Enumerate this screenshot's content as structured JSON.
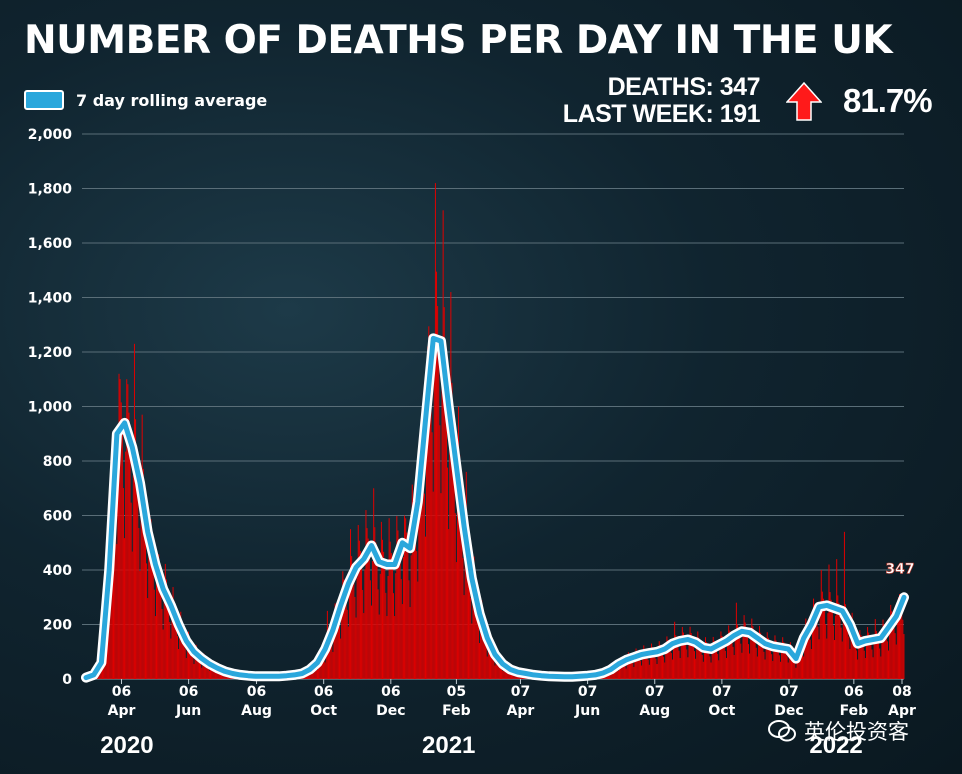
{
  "title": "NUMBER OF DEATHS PER DAY IN THE UK",
  "legend": {
    "label": "7 day rolling average"
  },
  "stats": {
    "deaths": "DEATHS: 347",
    "last_week": "LAST WEEK: 191",
    "change": "81.7%",
    "arrow_color": "#ff1a1a"
  },
  "watermark": {
    "text": "英伦投资客"
  },
  "colors": {
    "bar": "#e00000",
    "line": "#2aa7dc",
    "line_outline": "#ffffff",
    "grid": "#5a6e78"
  },
  "chart_data": {
    "type": "bar",
    "title": "NUMBER OF DEATHS PER DAY IN THE UK",
    "ylim": [
      0,
      2000
    ],
    "ytick_labels": [
      "0",
      "200",
      "400",
      "600",
      "800",
      "1,000",
      "1,200",
      "1,400",
      "1,600",
      "1,800",
      "2,000"
    ],
    "xlim_weeks": [
      0,
      106
    ],
    "xtick_labels": [
      {
        "day": "06",
        "month": "Apr",
        "week": 4.6
      },
      {
        "day": "06",
        "month": "Jun",
        "week": 13.3
      },
      {
        "day": "06",
        "month": "Aug",
        "week": 22.1
      },
      {
        "day": "06",
        "month": "Oct",
        "week": 30.8
      },
      {
        "day": "06",
        "month": "Dec",
        "week": 39.5
      },
      {
        "day": "05",
        "month": "Feb",
        "week": 48.0
      },
      {
        "day": "07",
        "month": "Apr",
        "week": 56.3
      },
      {
        "day": "07",
        "month": "Jun",
        "week": 65.0
      },
      {
        "day": "07",
        "month": "Aug",
        "week": 73.7
      },
      {
        "day": "07",
        "month": "Oct",
        "week": 82.4
      },
      {
        "day": "07",
        "month": "Dec",
        "week": 91.1
      },
      {
        "day": "06",
        "month": "Feb",
        "week": 99.5
      },
      {
        "day": "08",
        "month": "Apr",
        "week": 107.6
      }
    ],
    "year_labels": [
      {
        "label": "2020",
        "week": 5.3
      },
      {
        "label": "2021",
        "week": 47.0
      },
      {
        "label": "2022",
        "week": 97.2
      }
    ],
    "rolling_average": {
      "name": "7 day rolling average",
      "points": [
        [
          0,
          5
        ],
        [
          1,
          15
        ],
        [
          2,
          60
        ],
        [
          3,
          400
        ],
        [
          4,
          900
        ],
        [
          5,
          940
        ],
        [
          6,
          850
        ],
        [
          7,
          720
        ],
        [
          8,
          540
        ],
        [
          9,
          420
        ],
        [
          10,
          330
        ],
        [
          11,
          270
        ],
        [
          12,
          200
        ],
        [
          13,
          140
        ],
        [
          14,
          100
        ],
        [
          15,
          75
        ],
        [
          16,
          55
        ],
        [
          17,
          40
        ],
        [
          18,
          28
        ],
        [
          19,
          20
        ],
        [
          20,
          15
        ],
        [
          21,
          12
        ],
        [
          22,
          10
        ],
        [
          23,
          10
        ],
        [
          24,
          10
        ],
        [
          25,
          10
        ],
        [
          26,
          12
        ],
        [
          27,
          15
        ],
        [
          28,
          20
        ],
        [
          29,
          35
        ],
        [
          30,
          60
        ],
        [
          31,
          110
        ],
        [
          32,
          180
        ],
        [
          33,
          270
        ],
        [
          34,
          350
        ],
        [
          35,
          410
        ],
        [
          36,
          440
        ],
        [
          37,
          490
        ],
        [
          38,
          430
        ],
        [
          39,
          420
        ],
        [
          40,
          420
        ],
        [
          41,
          500
        ],
        [
          42,
          480
        ],
        [
          43,
          650
        ],
        [
          44,
          950
        ],
        [
          45,
          1250
        ],
        [
          46,
          1240
        ],
        [
          47,
          1000
        ],
        [
          48,
          780
        ],
        [
          49,
          560
        ],
        [
          50,
          370
        ],
        [
          51,
          240
        ],
        [
          52,
          150
        ],
        [
          53,
          90
        ],
        [
          54,
          55
        ],
        [
          55,
          35
        ],
        [
          56,
          25
        ],
        [
          57,
          20
        ],
        [
          58,
          15
        ],
        [
          59,
          12
        ],
        [
          60,
          10
        ],
        [
          61,
          9
        ],
        [
          62,
          8
        ],
        [
          63,
          8
        ],
        [
          64,
          10
        ],
        [
          65,
          12
        ],
        [
          66,
          15
        ],
        [
          67,
          22
        ],
        [
          68,
          35
        ],
        [
          69,
          55
        ],
        [
          70,
          70
        ],
        [
          71,
          80
        ],
        [
          72,
          90
        ],
        [
          73,
          95
        ],
        [
          74,
          100
        ],
        [
          75,
          110
        ],
        [
          76,
          130
        ],
        [
          77,
          140
        ],
        [
          78,
          145
        ],
        [
          79,
          135
        ],
        [
          80,
          115
        ],
        [
          81,
          110
        ],
        [
          82,
          125
        ],
        [
          83,
          140
        ],
        [
          84,
          160
        ],
        [
          85,
          175
        ],
        [
          86,
          170
        ],
        [
          87,
          150
        ],
        [
          88,
          130
        ],
        [
          89,
          120
        ],
        [
          90,
          115
        ],
        [
          91,
          110
        ],
        [
          92,
          75
        ],
        [
          93,
          150
        ],
        [
          94,
          200
        ],
        [
          95,
          265
        ],
        [
          96,
          270
        ],
        [
          97,
          260
        ],
        [
          98,
          250
        ],
        [
          99,
          200
        ],
        [
          100,
          130
        ],
        [
          101,
          140
        ],
        [
          102,
          145
        ],
        [
          103,
          150
        ],
        [
          104,
          190
        ],
        [
          105,
          230
        ],
        [
          106,
          300
        ]
      ]
    },
    "daily_deaths_peaks": [
      [
        4,
        1120
      ],
      [
        5,
        1100
      ],
      [
        6,
        1230
      ],
      [
        7,
        970
      ],
      [
        8,
        600
      ],
      [
        9,
        420
      ],
      [
        31,
        250
      ],
      [
        34,
        550
      ],
      [
        36,
        620
      ],
      [
        37,
        700
      ],
      [
        39,
        590
      ],
      [
        41,
        600
      ],
      [
        43,
        820
      ],
      [
        44,
        1220
      ],
      [
        45,
        1820
      ],
      [
        46,
        1720
      ],
      [
        47,
        1420
      ],
      [
        48,
        1000
      ],
      [
        49,
        760
      ],
      [
        76,
        210
      ],
      [
        84,
        280
      ],
      [
        95,
        400
      ],
      [
        96,
        420
      ],
      [
        97,
        440
      ],
      [
        98,
        540
      ],
      [
        102,
        220
      ],
      [
        105,
        300
      ]
    ],
    "annotation": "347"
  }
}
